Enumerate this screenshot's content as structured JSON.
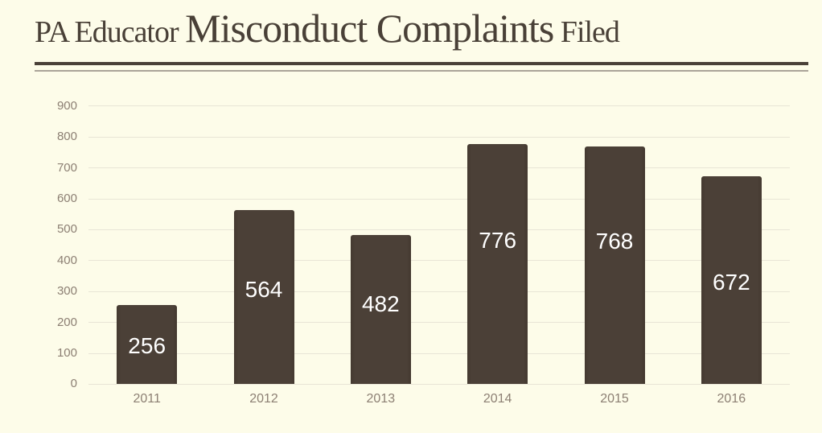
{
  "title": {
    "prefix": "PA Educator ",
    "emphasis": "Misconduct Complaints",
    "suffix": " Filed"
  },
  "colors": {
    "background": "#FDFCE9",
    "title_text": "#494037",
    "rule_thick": "#4A4138",
    "rule_thin": "#ABA499",
    "bar_fill": "#4B4037",
    "bar_fill_edge": "#443930",
    "value_label": "#FFFFFF",
    "axis_label": "#8C7F73",
    "gridline": "#E8E5D6"
  },
  "chart_data": {
    "type": "bar",
    "title": "PA Educator Misconduct Complaints Filed",
    "categories": [
      "2011",
      "2012",
      "2013",
      "2014",
      "2015",
      "2016"
    ],
    "values": [
      256,
      564,
      482,
      776,
      768,
      672
    ],
    "data_labels": [
      256,
      564,
      482,
      776,
      768,
      672
    ],
    "xlabel": "",
    "ylabel": "",
    "y_ticks": [
      0,
      100,
      200,
      300,
      400,
      500,
      600,
      700,
      800,
      900
    ],
    "ylim": [
      0,
      900
    ],
    "grid": true,
    "legend": false,
    "data_label_position": "inside",
    "label_fraction_from_top": [
      0.52,
      0.46,
      0.465,
      0.4,
      0.4,
      0.51
    ]
  }
}
